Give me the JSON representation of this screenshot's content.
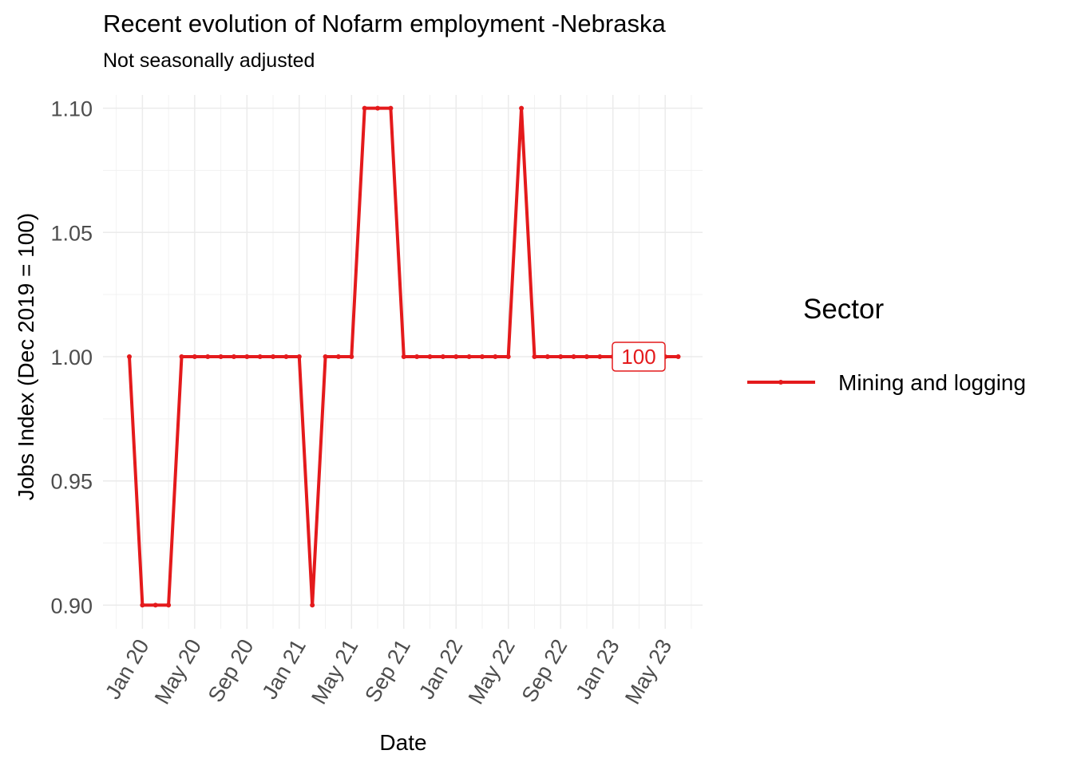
{
  "chart_data": {
    "type": "line",
    "title": "Recent evolution of Nofarm employment -Nebraska",
    "subtitle": "Not seasonally adjusted",
    "xlabel": "Date",
    "ylabel": "Jobs Index (Dec 2019 = 100)",
    "x_start": "2019-12",
    "x_tick_labels": [
      "Jan 20",
      "May 20",
      "Sep 20",
      "Jan 21",
      "May 21",
      "Sep 21",
      "Jan 22",
      "May 22",
      "Sep 22",
      "Jan 23",
      "May 23"
    ],
    "x_tick_months": [
      "2020-01",
      "2020-05",
      "2020-09",
      "2021-01",
      "2021-05",
      "2021-09",
      "2022-01",
      "2022-05",
      "2022-09",
      "2023-01",
      "2023-05"
    ],
    "y_ticks": [
      0.9,
      0.95,
      1.0,
      1.05,
      1.1
    ],
    "y_tick_labels": [
      "0.90",
      "0.95",
      "1.00",
      "1.05",
      "1.10"
    ],
    "ylim": [
      0.89,
      1.11
    ],
    "grid": true,
    "legend_title": "Sector",
    "legend_position": "right",
    "series": [
      {
        "name": "Mining and logging",
        "color": "#e41a1c",
        "x": [
          "2019-12",
          "2020-01",
          "2020-02",
          "2020-03",
          "2020-04",
          "2020-05",
          "2020-06",
          "2020-07",
          "2020-08",
          "2020-09",
          "2020-10",
          "2020-11",
          "2020-12",
          "2021-01",
          "2021-02",
          "2021-03",
          "2021-04",
          "2021-05",
          "2021-06",
          "2021-07",
          "2021-08",
          "2021-09",
          "2021-10",
          "2021-11",
          "2021-12",
          "2022-01",
          "2022-02",
          "2022-03",
          "2022-04",
          "2022-05",
          "2022-06",
          "2022-07",
          "2022-08",
          "2022-09",
          "2022-10",
          "2022-11",
          "2022-12",
          "2023-01",
          "2023-02",
          "2023-03",
          "2023-04",
          "2023-05",
          "2023-06"
        ],
        "values": [
          1.0,
          0.9,
          0.9,
          0.9,
          1.0,
          1.0,
          1.0,
          1.0,
          1.0,
          1.0,
          1.0,
          1.0,
          1.0,
          1.0,
          0.9,
          1.0,
          1.0,
          1.0,
          1.1,
          1.1,
          1.1,
          1.0,
          1.0,
          1.0,
          1.0,
          1.0,
          1.0,
          1.0,
          1.0,
          1.0,
          1.1,
          1.0,
          1.0,
          1.0,
          1.0,
          1.0,
          1.0,
          1.0,
          1.0,
          1.0,
          1.0,
          1.0,
          1.0
        ]
      }
    ],
    "end_label": {
      "text": "100",
      "series": "Mining and logging"
    }
  }
}
